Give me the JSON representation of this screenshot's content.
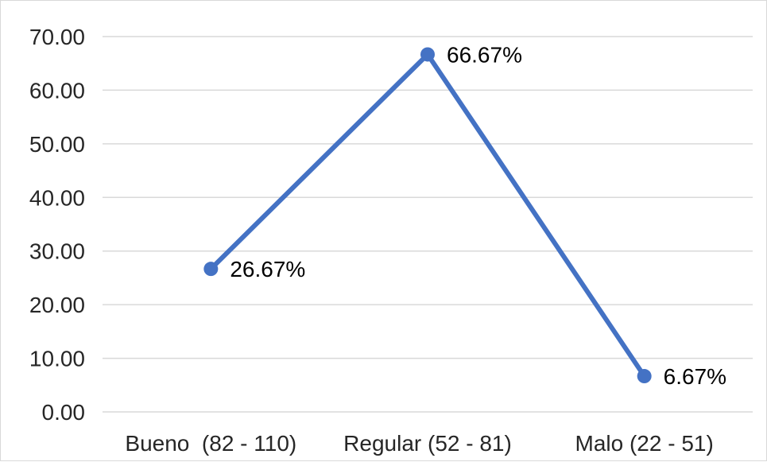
{
  "chart_data": {
    "type": "line",
    "categories": [
      "Bueno  (82 - 110)",
      "Regular (52 - 81)",
      "Malo (22 - 51)"
    ],
    "series": [
      {
        "values": [
          26.67,
          66.67,
          6.67
        ],
        "data_labels": [
          "26.67%",
          "66.67%",
          "6.67%"
        ],
        "color": "#4472c4"
      }
    ],
    "y_ticks": [
      "0.00",
      "10.00",
      "20.00",
      "30.00",
      "40.00",
      "50.00",
      "60.00",
      "70.00"
    ],
    "ylim": [
      0,
      70
    ],
    "grid": true,
    "legend": "none",
    "colors": {
      "line": "#4472c4",
      "grid": "#d9d9d9",
      "text": "#262626"
    }
  }
}
